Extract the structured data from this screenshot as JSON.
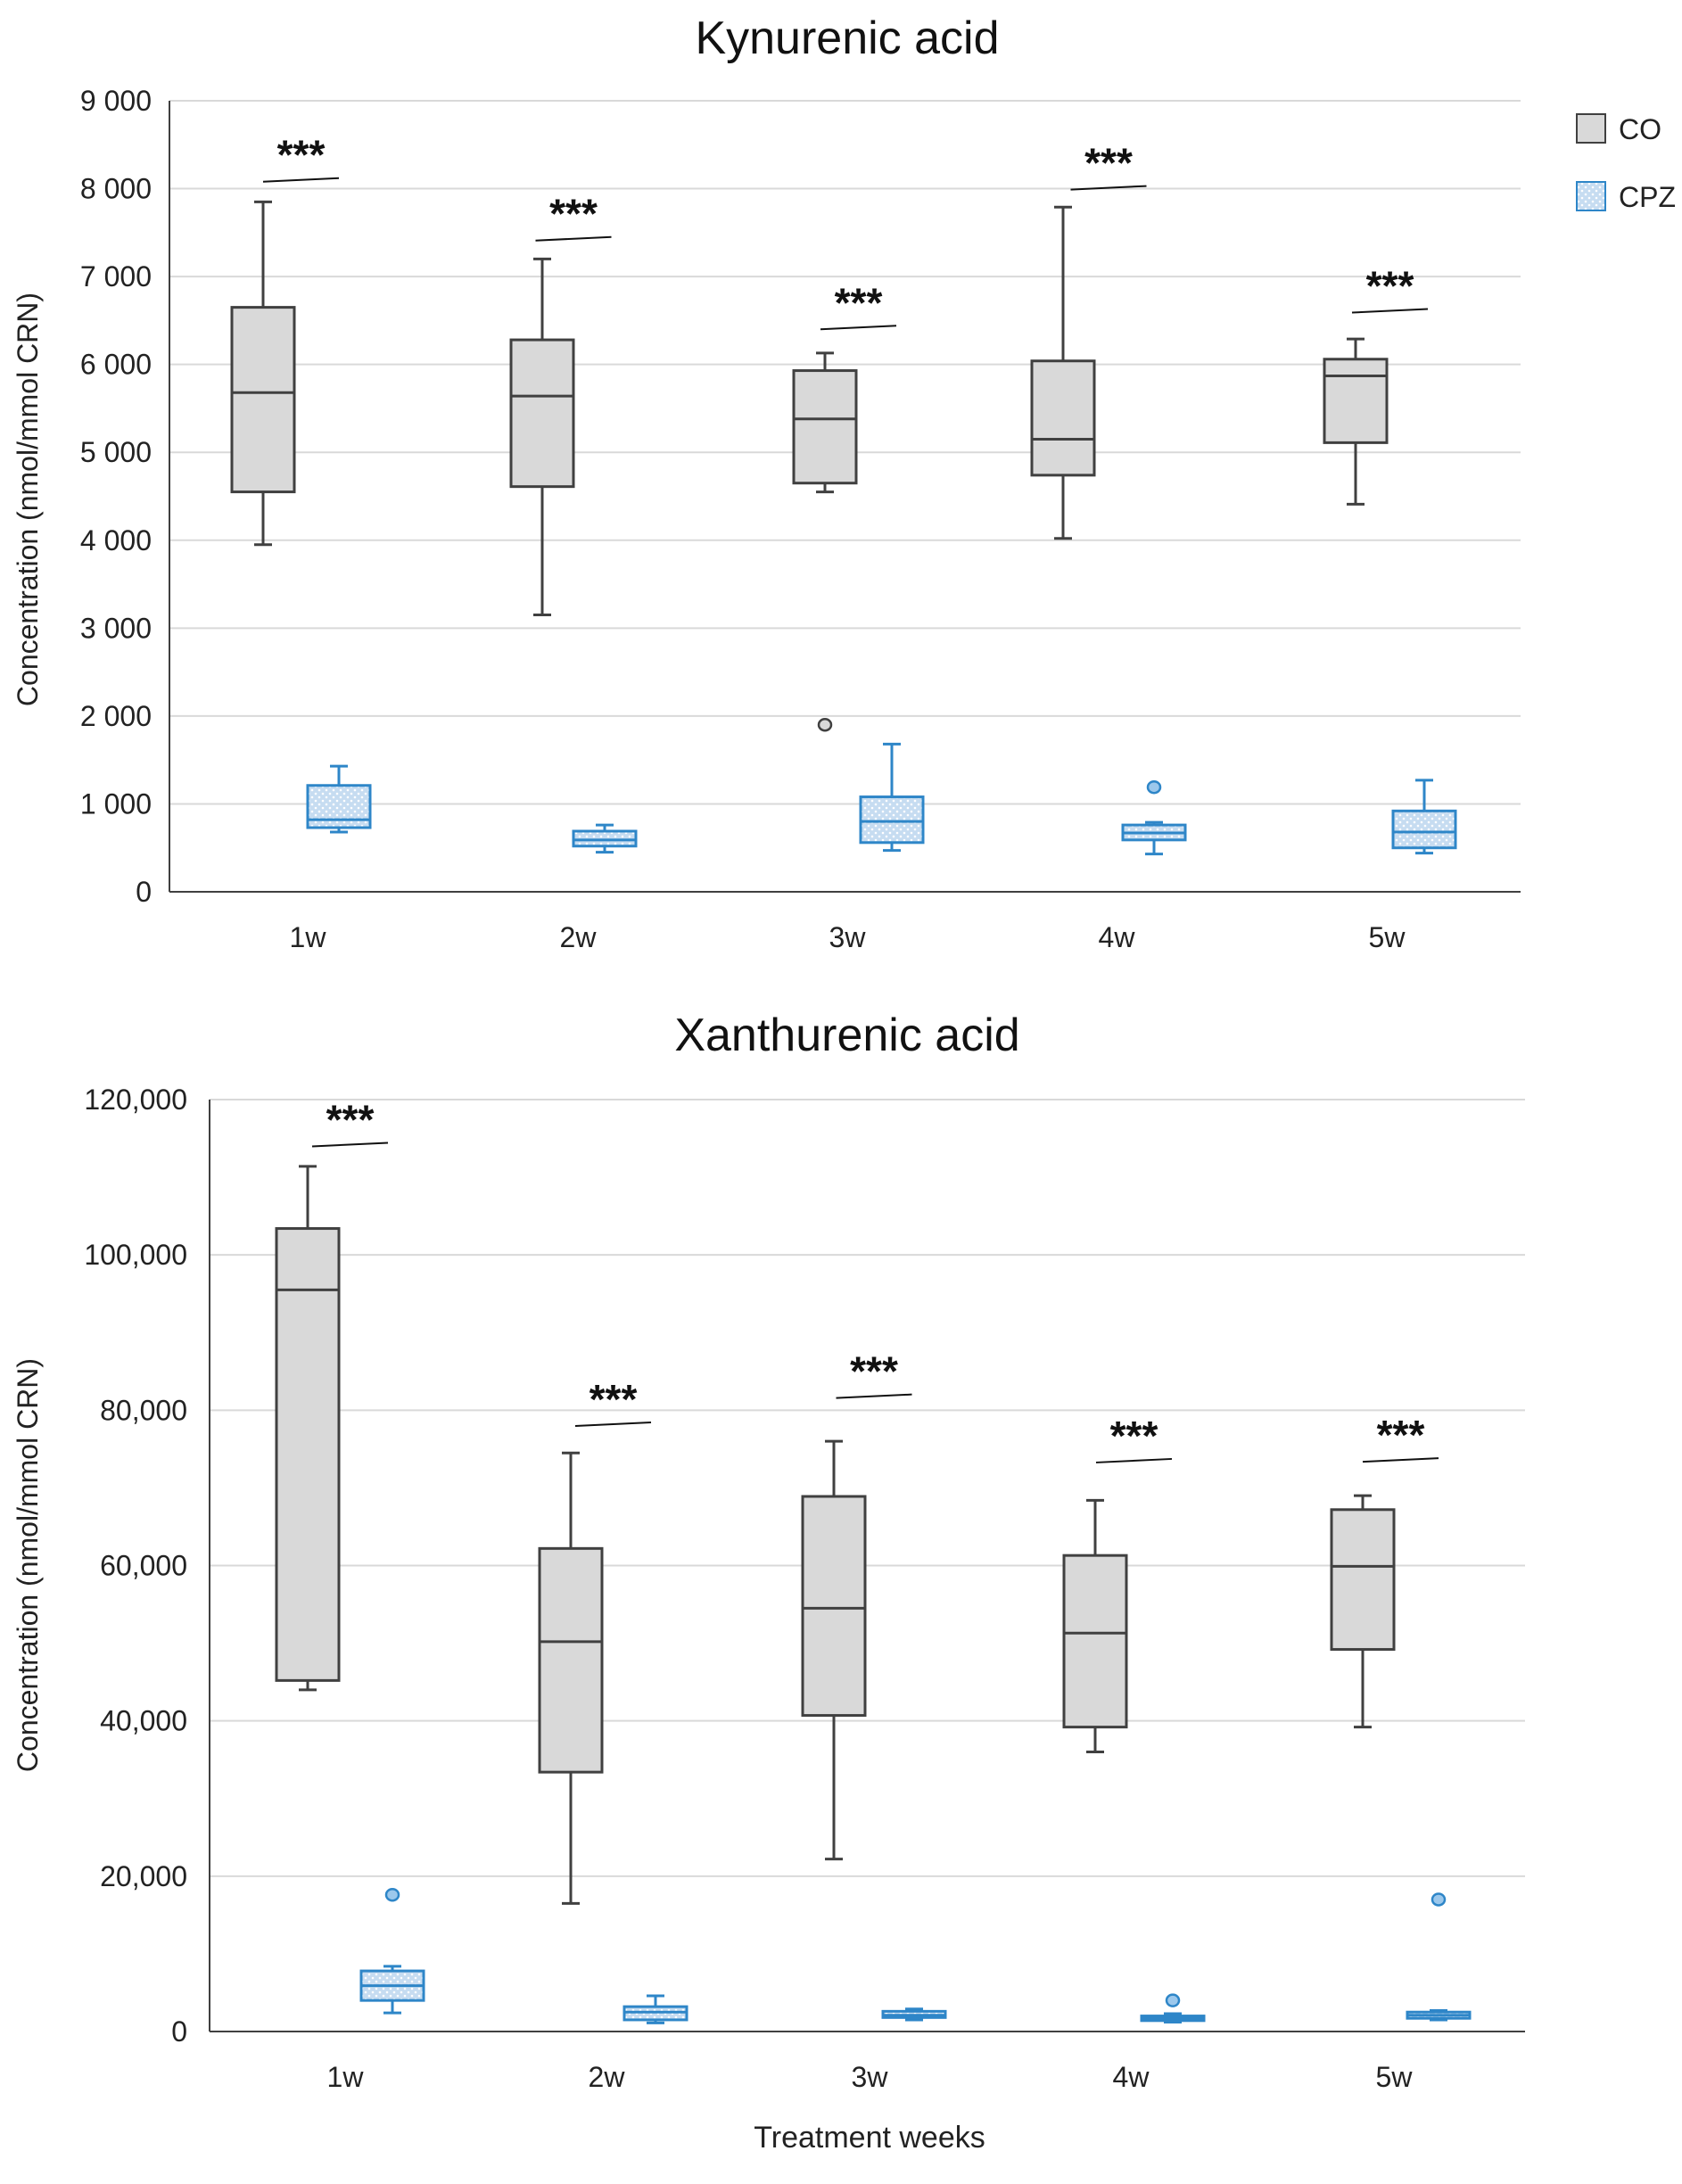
{
  "chart_data": [
    {
      "type": "box",
      "title": "Kynurenic acid",
      "ylabel": "Concentration (nmol/mmol CRN)",
      "xlabel": "",
      "ylim": [
        0,
        9000
      ],
      "yticks": [
        0,
        1000,
        2000,
        3000,
        4000,
        5000,
        6000,
        7000,
        8000,
        9000
      ],
      "ytick_labels": [
        "0",
        "1 000",
        "2 000",
        "3 000",
        "4 000",
        "5 000",
        "6 000",
        "7 000",
        "8 000",
        "9 000"
      ],
      "categories": [
        "1w",
        "2w",
        "3w",
        "4w",
        "5w"
      ],
      "legend": [
        "CO",
        "CPZ"
      ],
      "significance": [
        "***",
        "***",
        "***",
        "***",
        "***"
      ],
      "significance_level": [
        8100,
        7430,
        6420,
        8010,
        6610
      ],
      "series": [
        {
          "name": "CO",
          "color": "#d9d9d9",
          "boxes": [
            {
              "min": 3950,
              "q1": 4550,
              "median": 5680,
              "q3": 6650,
              "max": 7850,
              "outliers": []
            },
            {
              "min": 3150,
              "q1": 4610,
              "median": 5640,
              "q3": 6280,
              "max": 7200,
              "outliers": []
            },
            {
              "min": 4550,
              "q1": 4650,
              "median": 5380,
              "q3": 5930,
              "max": 6130,
              "outliers": [
                1900
              ]
            },
            {
              "min": 4020,
              "q1": 4740,
              "median": 5150,
              "q3": 6040,
              "max": 7790,
              "outliers": []
            },
            {
              "min": 4410,
              "q1": 5110,
              "median": 5870,
              "q3": 6060,
              "max": 6290,
              "outliers": []
            }
          ]
        },
        {
          "name": "CPZ",
          "color": "#2e86c8",
          "boxes": [
            {
              "min": 680,
              "q1": 730,
              "median": 820,
              "q3": 1210,
              "max": 1430,
              "outliers": []
            },
            {
              "min": 450,
              "q1": 520,
              "median": 590,
              "q3": 690,
              "max": 760,
              "outliers": []
            },
            {
              "min": 470,
              "q1": 560,
              "median": 800,
              "q3": 1080,
              "max": 1680,
              "outliers": []
            },
            {
              "min": 430,
              "q1": 590,
              "median": 670,
              "q3": 760,
              "max": 790,
              "outliers": [
                1190
              ]
            },
            {
              "min": 440,
              "q1": 500,
              "median": 680,
              "q3": 920,
              "max": 1270,
              "outliers": []
            }
          ]
        }
      ]
    },
    {
      "type": "box",
      "title": "Xanthurenic acid",
      "ylabel": "Concentration (nmol/mmol CRN)",
      "xlabel": "Treatment weeks",
      "ylim": [
        0,
        120000
      ],
      "yticks": [
        0,
        20000,
        40000,
        60000,
        80000,
        100000,
        120000
      ],
      "ytick_labels": [
        "0",
        "20,000",
        "40,000",
        "60,000",
        "80,000",
        "100,000",
        "120,000"
      ],
      "categories": [
        "1w",
        "2w",
        "3w",
        "4w",
        "5w"
      ],
      "significance": [
        "***",
        "***",
        "***",
        "***",
        "***"
      ],
      "significance_level": [
        114200,
        78200,
        81800,
        73500,
        73600
      ],
      "series": [
        {
          "name": "CO",
          "color": "#d9d9d9",
          "boxes": [
            {
              "min": 44000,
              "q1": 45200,
              "median": 95500,
              "q3": 103400,
              "max": 111400,
              "outliers": []
            },
            {
              "min": 16500,
              "q1": 33400,
              "median": 50200,
              "q3": 62200,
              "max": 74500,
              "outliers": []
            },
            {
              "min": 22200,
              "q1": 40700,
              "median": 54500,
              "q3": 68900,
              "max": 76000,
              "outliers": []
            },
            {
              "min": 36000,
              "q1": 39200,
              "median": 51300,
              "q3": 61300,
              "max": 68400,
              "outliers": []
            },
            {
              "min": 39200,
              "q1": 49200,
              "median": 59900,
              "q3": 67200,
              "max": 69000,
              "outliers": []
            }
          ]
        },
        {
          "name": "CPZ",
          "color": "#2e86c8",
          "boxes": [
            {
              "min": 2400,
              "q1": 4000,
              "median": 5900,
              "q3": 7800,
              "max": 8400,
              "outliers": [
                17600
              ]
            },
            {
              "min": 1100,
              "q1": 1500,
              "median": 2500,
              "q3": 3200,
              "max": 4600,
              "outliers": []
            },
            {
              "min": 1500,
              "q1": 1800,
              "median": 2100,
              "q3": 2600,
              "max": 2900,
              "outliers": []
            },
            {
              "min": 1200,
              "q1": 1400,
              "median": 1700,
              "q3": 2000,
              "max": 2300,
              "outliers": [
                4000
              ]
            },
            {
              "min": 1500,
              "q1": 1700,
              "median": 2100,
              "q3": 2500,
              "max": 2700,
              "outliers": [
                17000
              ]
            }
          ]
        }
      ]
    }
  ]
}
